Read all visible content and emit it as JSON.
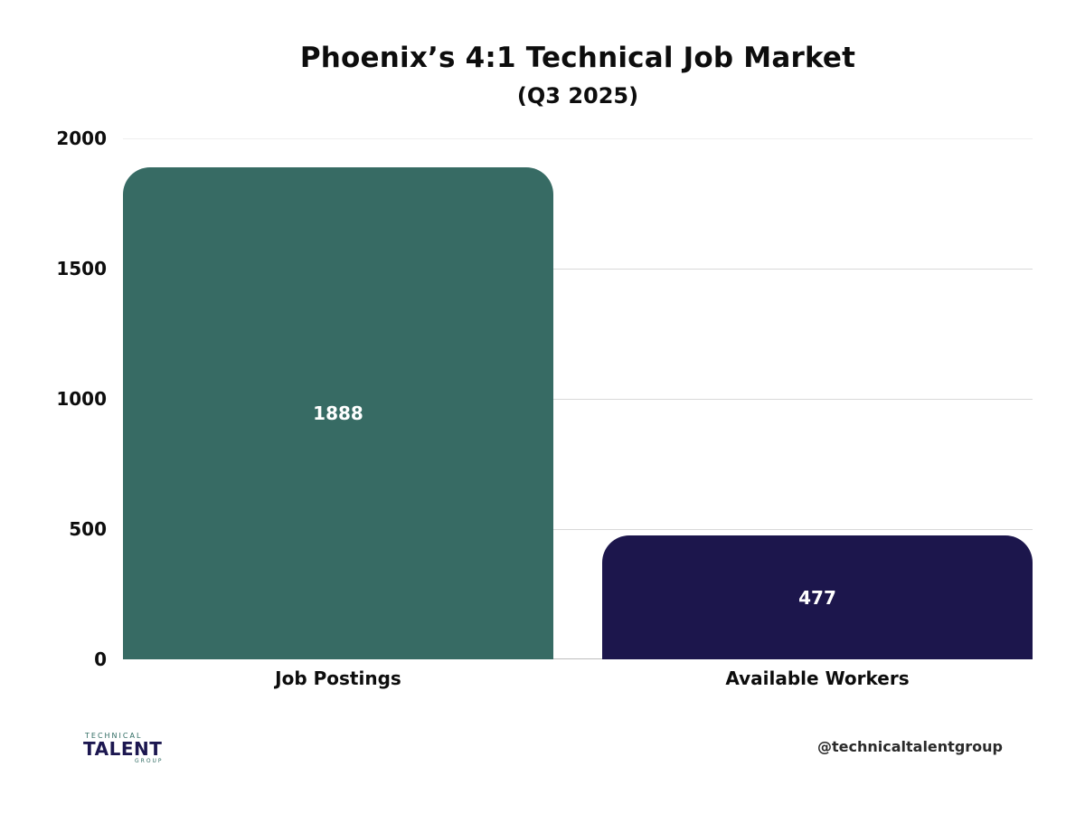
{
  "header": {
    "title": "Phoenix’s 4:1 Technical Job Market",
    "subtitle": "(Q3 2025)"
  },
  "footer": {
    "logo": {
      "line1": "TECHNICAL",
      "line2": "TALENT",
      "line3": "GROUP"
    },
    "handle": "@technicaltalentgroup"
  },
  "colors": {
    "job_postings": "#376b64",
    "available_workers": "#1c164c"
  },
  "chart_data": {
    "type": "bar",
    "title": "Phoenix’s 4:1 Technical Job Market",
    "subtitle": "(Q3 2025)",
    "categories": [
      "Job Postings",
      "Available Workers"
    ],
    "values": [
      1888,
      477
    ],
    "bar_colors": [
      "#376b64",
      "#1c164c"
    ],
    "data_labels": [
      "1888",
      "477"
    ],
    "xlabel": "",
    "ylabel": "",
    "ylim": [
      0,
      2000
    ],
    "yticks": [
      "0",
      "500",
      "1000",
      "1500",
      "2000"
    ],
    "grid": true,
    "legend": "none"
  }
}
